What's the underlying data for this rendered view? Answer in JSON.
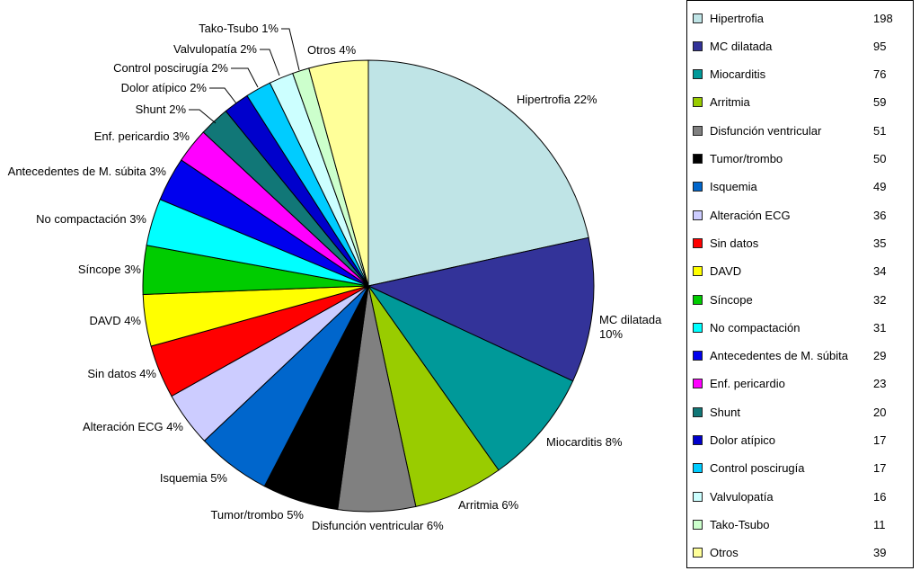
{
  "chart_data": {
    "type": "pie",
    "title": "",
    "legend_position": "right",
    "slices": [
      {
        "name": "Hipertrofia",
        "value": 198,
        "label": "Hipertrofia 22%",
        "color": "#bfe4e6"
      },
      {
        "name": "MC dilatada",
        "value": 95,
        "label": "MC dilatada 10%",
        "color": "#333399"
      },
      {
        "name": "Miocarditis",
        "value": 76,
        "label": "Miocarditis 8%",
        "color": "#009999"
      },
      {
        "name": "Arritmia",
        "value": 59,
        "label": "Arritmia 6%",
        "color": "#99cc00"
      },
      {
        "name": "Disfunción ventricular",
        "value": 51,
        "label": "Disfunción ventricular 6%",
        "color": "#808080"
      },
      {
        "name": "Tumor/trombo",
        "value": 50,
        "label": "Tumor/trombo 5%",
        "color": "#000000"
      },
      {
        "name": "Isquemia",
        "value": 49,
        "label": "Isquemia 5%",
        "color": "#0066cc"
      },
      {
        "name": "Alteración ECG",
        "value": 36,
        "label": "Alteración ECG 4%",
        "color": "#ccccff"
      },
      {
        "name": "Sin datos",
        "value": 35,
        "label": "Sin datos 4%",
        "color": "#ff0000"
      },
      {
        "name": "DAVD",
        "value": 34,
        "label": "DAVD 4%",
        "color": "#ffff00"
      },
      {
        "name": "Síncope",
        "value": 32,
        "label": "Síncope 3%",
        "color": "#00cc00"
      },
      {
        "name": "No compactación",
        "value": 31,
        "label": "No compactación 3%",
        "color": "#00ffff"
      },
      {
        "name": "Antecedentes de M. súbita",
        "value": 29,
        "label": "Antecedentes de M. súbita 3%",
        "color": "#0000ee"
      },
      {
        "name": "Enf. pericardio",
        "value": 23,
        "label": "Enf. pericardio 3%",
        "color": "#ff00ff"
      },
      {
        "name": "Shunt",
        "value": 20,
        "label": "Shunt 2%",
        "color": "#117777"
      },
      {
        "name": "Dolor atípico",
        "value": 17,
        "label": "Dolor atípico 2%",
        "color": "#0000cc"
      },
      {
        "name": "Control poscirugía",
        "value": 17,
        "label": "Control poscirugía 2%",
        "color": "#00ccff"
      },
      {
        "name": "Valvulopatía",
        "value": 16,
        "label": "Valvulopatía 2%",
        "color": "#ccffff"
      },
      {
        "name": "Tako-Tsubo",
        "value": 11,
        "label": "Tako-Tsubo 1%",
        "color": "#ccffcc"
      },
      {
        "name": "Otros",
        "value": 39,
        "label": "Otros 4%",
        "color": "#ffff99"
      }
    ]
  }
}
